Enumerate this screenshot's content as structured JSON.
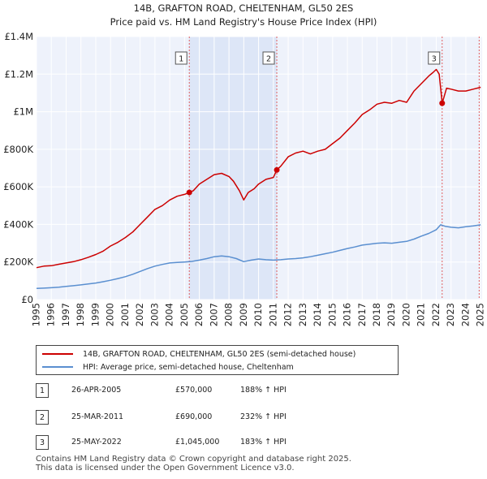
{
  "chart_data": {
    "type": "line",
    "title": "14B, GRAFTON ROAD, CHELTENHAM, GL50 2ES",
    "subtitle": "Price paid vs. HM Land Registry's House Price Index (HPI)",
    "xlim": [
      1995,
      2025.1
    ],
    "ylim": [
      0,
      1400000
    ],
    "yticks": [
      0,
      200000,
      400000,
      600000,
      800000,
      1000000,
      1200000,
      1400000
    ],
    "ytick_labels": [
      "£0",
      "£200K",
      "£400K",
      "£600K",
      "£800K",
      "£1M",
      "£1.2M",
      "£1.4M"
    ],
    "xticks": [
      1995,
      1996,
      1997,
      1998,
      1999,
      2000,
      2001,
      2002,
      2003,
      2004,
      2005,
      2006,
      2007,
      2008,
      2009,
      2010,
      2011,
      2012,
      2013,
      2014,
      2015,
      2016,
      2017,
      2018,
      2019,
      2020,
      2021,
      2022,
      2023,
      2024,
      2025
    ],
    "shaded_spans": [
      [
        2005.32,
        2011.23
      ]
    ],
    "sale_lines": [
      2005.32,
      2011.23,
      2022.4,
      2024.9
    ],
    "series": [
      {
        "name": "14B, GRAFTON ROAD, CHELTENHAM, GL50 2ES (semi-detached house)",
        "color": "#cc0000",
        "x": [
          1995,
          1995.5,
          1996,
          1996.5,
          1997,
          1997.5,
          1998,
          1998.5,
          1999,
          1999.5,
          2000,
          2000.5,
          2001,
          2001.5,
          2002,
          2002.5,
          2003,
          2003.5,
          2004,
          2004.5,
          2005,
          2005.32,
          2005.6,
          2006,
          2006.5,
          2007,
          2007.5,
          2008,
          2008.3,
          2008.7,
          2009,
          2009.3,
          2009.7,
          2010,
          2010.5,
          2011,
          2011.23,
          2011.5,
          2012,
          2012.5,
          2013,
          2013.5,
          2014,
          2014.5,
          2015,
          2015.5,
          2016,
          2016.5,
          2017,
          2017.5,
          2018,
          2018.5,
          2019,
          2019.5,
          2020,
          2020.5,
          2021,
          2021.5,
          2021.8,
          2022,
          2022.2,
          2022.4,
          2022.7,
          2023,
          2023.5,
          2024,
          2024.5,
          2025
        ],
        "y": [
          170000,
          178000,
          180000,
          188000,
          195000,
          202000,
          212000,
          225000,
          240000,
          258000,
          285000,
          305000,
          330000,
          360000,
          400000,
          440000,
          480000,
          500000,
          530000,
          550000,
          560000,
          570000,
          580000,
          615000,
          640000,
          665000,
          672000,
          655000,
          630000,
          580000,
          530000,
          570000,
          590000,
          615000,
          640000,
          650000,
          690000,
          710000,
          760000,
          780000,
          790000,
          775000,
          790000,
          800000,
          830000,
          860000,
          900000,
          940000,
          985000,
          1010000,
          1040000,
          1050000,
          1045000,
          1060000,
          1050000,
          1110000,
          1150000,
          1190000,
          1210000,
          1225000,
          1200000,
          1045000,
          1125000,
          1120000,
          1110000,
          1110000,
          1120000,
          1130000
        ]
      },
      {
        "name": "HPI: Average price, semi-detached house, Cheltenham",
        "color": "#5a8fd0",
        "x": [
          1995,
          1995.5,
          1996,
          1996.5,
          1997,
          1997.5,
          1998,
          1998.5,
          1999,
          1999.5,
          2000,
          2000.5,
          2001,
          2001.5,
          2002,
          2002.5,
          2003,
          2003.5,
          2004,
          2004.5,
          2005,
          2005.5,
          2006,
          2006.5,
          2007,
          2007.5,
          2008,
          2008.5,
          2009,
          2009.5,
          2010,
          2010.5,
          2011,
          2011.5,
          2012,
          2012.5,
          2013,
          2013.5,
          2014,
          2014.5,
          2015,
          2015.5,
          2016,
          2016.5,
          2017,
          2017.5,
          2018,
          2018.5,
          2019,
          2019.5,
          2020,
          2020.5,
          2021,
          2021.5,
          2022,
          2022.3,
          2022.6,
          2023,
          2023.5,
          2024,
          2024.5,
          2025
        ],
        "y": [
          59000,
          61000,
          63000,
          66000,
          70000,
          74000,
          78000,
          83000,
          88000,
          95000,
          103000,
          112000,
          122000,
          135000,
          150000,
          165000,
          178000,
          187000,
          195000,
          198000,
          200000,
          203000,
          210000,
          218000,
          228000,
          232000,
          228000,
          218000,
          202000,
          210000,
          216000,
          212000,
          210000,
          212000,
          216000,
          218000,
          222000,
          228000,
          236000,
          244000,
          252000,
          262000,
          272000,
          280000,
          290000,
          295000,
          300000,
          302000,
          300000,
          305000,
          310000,
          322000,
          338000,
          352000,
          372000,
          398000,
          390000,
          385000,
          382000,
          388000,
          392000,
          398000
        ]
      }
    ],
    "sales": [
      {
        "id": "1",
        "x": 2005.32,
        "y": 570000
      },
      {
        "id": "2",
        "x": 2011.23,
        "y": 690000
      },
      {
        "id": "3",
        "x": 2022.4,
        "y": 1045000
      }
    ]
  },
  "legend": {
    "property": "14B, GRAFTON ROAD, CHELTENHAM, GL50 2ES (semi-detached house)",
    "hpi": "HPI: Average price, semi-detached house, Cheltenham"
  },
  "transactions": [
    {
      "num": "1",
      "date": "26-APR-2005",
      "price": "£570,000",
      "hpi": "188% ↑ HPI"
    },
    {
      "num": "2",
      "date": "25-MAR-2011",
      "price": "£690,000",
      "hpi": "232% ↑ HPI"
    },
    {
      "num": "3",
      "date": "25-MAY-2022",
      "price": "£1,045,000",
      "hpi": "183% ↑ HPI"
    }
  ],
  "footer": {
    "line1": "Contains HM Land Registry data © Crown copyright and database right 2025.",
    "line2": "This data is licensed under the Open Government Licence v3.0."
  }
}
